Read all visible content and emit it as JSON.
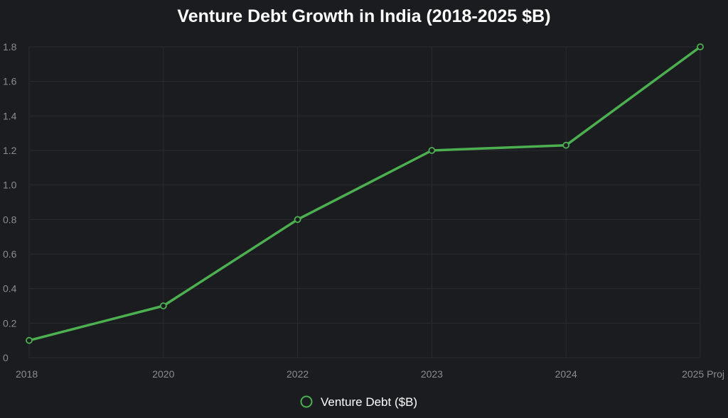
{
  "chart_data": {
    "type": "line",
    "title": "Venture Debt Growth in India (2018-2025 $B)",
    "xlabel": "",
    "ylabel": "",
    "categories": [
      "2018",
      "2020",
      "2022",
      "2023",
      "2024",
      "2025 Proj"
    ],
    "y_ticks": [
      "0",
      "0.2",
      "0.4",
      "0.6",
      "0.8",
      "1.0",
      "1.2",
      "1.4",
      "1.6",
      "1.8"
    ],
    "ylim": [
      0,
      1.8
    ],
    "grid": true,
    "legend_position": "bottom",
    "series": [
      {
        "name": "Venture Debt ($B)",
        "values": [
          0.1,
          0.3,
          0.8,
          1.2,
          1.23,
          1.8
        ],
        "color": "#4caf50"
      }
    ]
  }
}
